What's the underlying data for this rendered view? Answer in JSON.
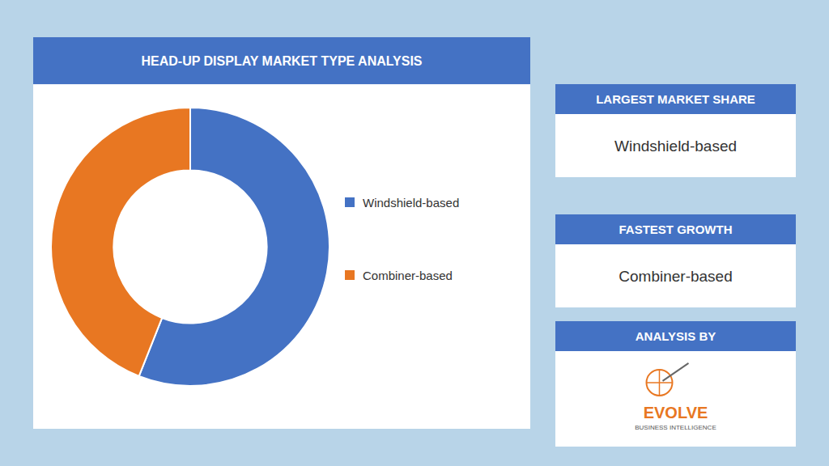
{
  "chart_data": {
    "type": "pie",
    "title": "HEAD-UP DISPLAY MARKET TYPE ANALYSIS",
    "categories": [
      "Windshield-based",
      "Combiner-based"
    ],
    "values": [
      56,
      44
    ],
    "colors": [
      "#4472C4",
      "#E87722"
    ],
    "legend": "right",
    "annotations": [
      "LARGEST MARKET SHARE",
      "Windshield-based",
      "FASTEST GROWTH",
      "Combiner-based",
      "ANALYSIS BY",
      "EVOLVE",
      "BUSINESS INTELLIGENCE"
    ]
  }
}
